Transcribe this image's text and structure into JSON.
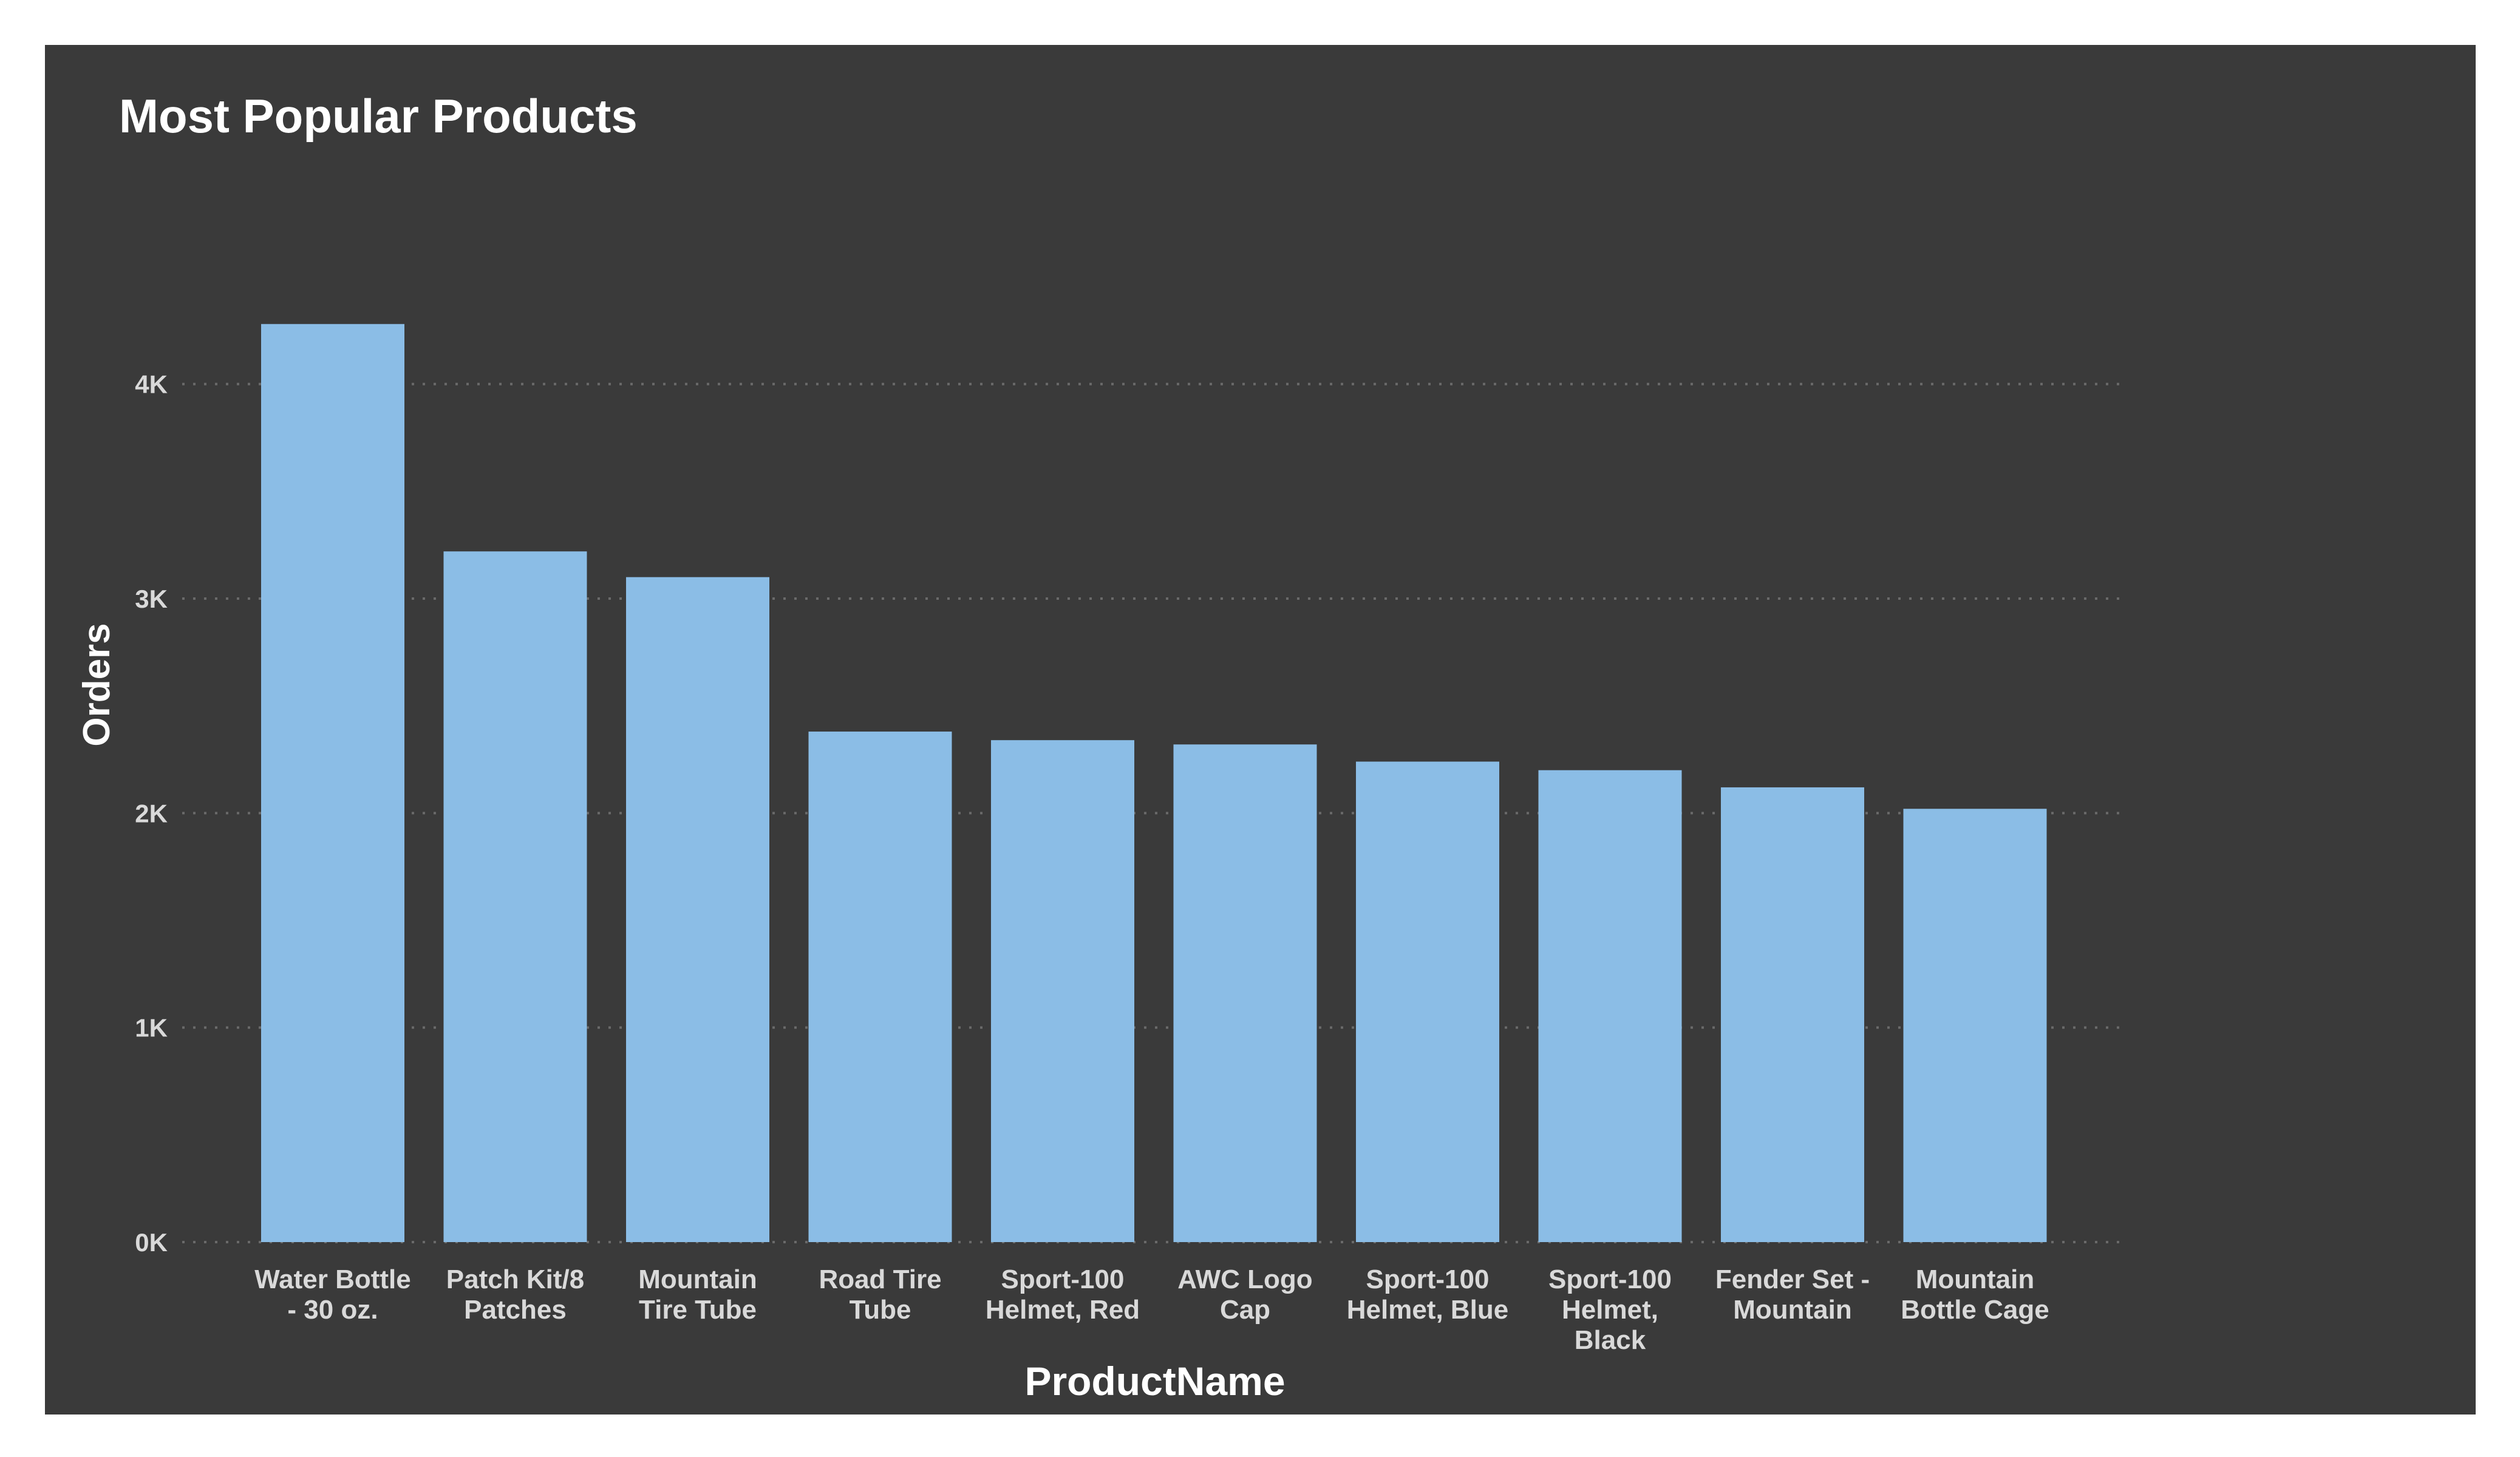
{
  "chart_data": {
    "type": "bar",
    "title": "Most Popular Products",
    "xlabel": "ProductName",
    "ylabel": "Orders",
    "categories": [
      "Water Bottle - 30 oz.",
      "Patch Kit/8 Patches",
      "Mountain Tire Tube",
      "Road Tire Tube",
      "Sport-100 Helmet, Red",
      "AWC Logo Cap",
      "Sport-100 Helmet, Blue",
      "Sport-100 Helmet, Black",
      "Fender Set - Mountain",
      "Mountain Bottle Cage"
    ],
    "category_label_lines": [
      [
        "Water Bottle",
        "- 30 oz."
      ],
      [
        "Patch Kit/8",
        "Patches"
      ],
      [
        "Mountain",
        "Tire Tube"
      ],
      [
        "Road Tire",
        "Tube"
      ],
      [
        "Sport-100",
        "Helmet, Red"
      ],
      [
        "AWC Logo",
        "Cap"
      ],
      [
        "Sport-100",
        "Helmet, Blue"
      ],
      [
        "Sport-100",
        "Helmet,",
        "Black"
      ],
      [
        "Fender Set -",
        "Mountain"
      ],
      [
        "Mountain",
        "Bottle Cage"
      ]
    ],
    "values": [
      4280,
      3220,
      3100,
      2380,
      2340,
      2320,
      2240,
      2200,
      2120,
      2020
    ],
    "ylim": [
      0,
      4500
    ],
    "yticks": [
      0,
      1000,
      2000,
      3000,
      4000
    ],
    "ytick_labels": [
      "0K",
      "1K",
      "2K",
      "3K",
      "4K"
    ],
    "grid": true,
    "legend": "none",
    "colors": {
      "panel_background": "#3a3a3a",
      "bar": "#8bbde6",
      "text": "#ffffff",
      "tick_text": "#d9d9d9",
      "grid": "#6a6a6a"
    }
  }
}
